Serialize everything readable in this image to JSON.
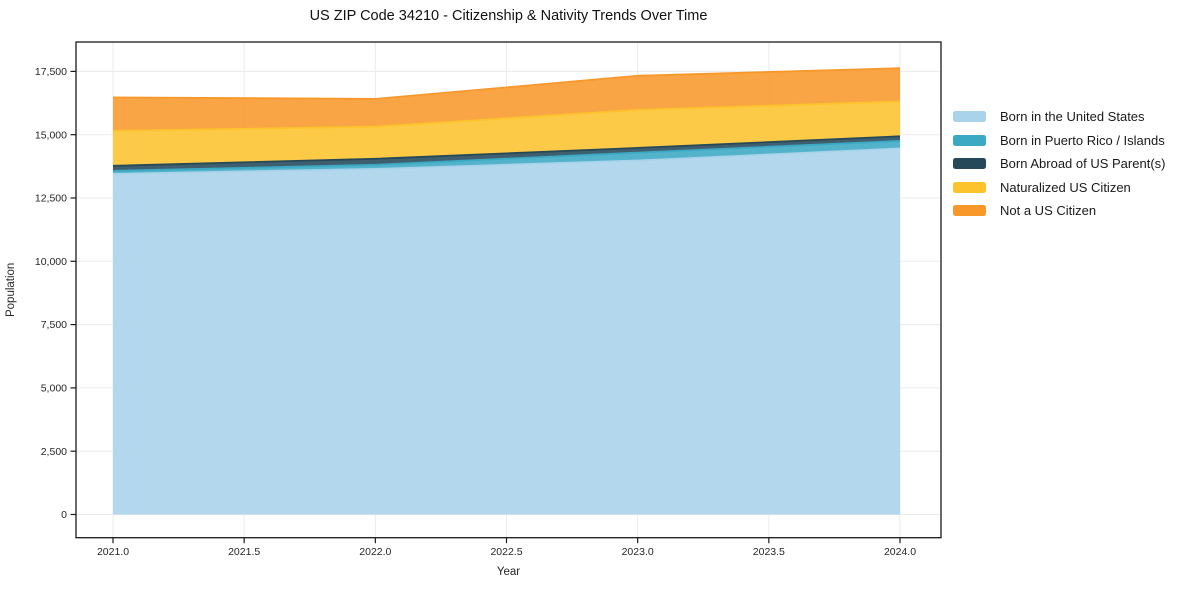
{
  "title": "US ZIP Code 34210 - Citizenship & Nativity Trends Over Time",
  "axes": {
    "x_label": "Year",
    "y_label": "Population",
    "x_ticks": [
      {
        "value": 2021.0,
        "label": "2021.0"
      },
      {
        "value": 2021.5,
        "label": "2021.5"
      },
      {
        "value": 2022.0,
        "label": "2022.0"
      },
      {
        "value": 2022.5,
        "label": "2022.5"
      },
      {
        "value": 2023.0,
        "label": "2023.0"
      },
      {
        "value": 2023.5,
        "label": "2023.5"
      },
      {
        "value": 2024.0,
        "label": "2024.0"
      }
    ],
    "y_ticks": [
      {
        "value": 0,
        "label": "0"
      },
      {
        "value": 2500,
        "label": "2,500"
      },
      {
        "value": 5000,
        "label": "5,000"
      },
      {
        "value": 7500,
        "label": "7,500"
      },
      {
        "value": 10000,
        "label": "10,000"
      },
      {
        "value": 12500,
        "label": "12,500"
      },
      {
        "value": 15000,
        "label": "15,000"
      },
      {
        "value": 17500,
        "label": "17,500"
      }
    ]
  },
  "colors": {
    "frame": "#1a1a1a",
    "gridline": "#ebebeb",
    "tick_text": "#262626",
    "title_text": "#111111"
  },
  "chart_data": {
    "type": "area",
    "stacked": true,
    "title": "US ZIP Code 34210 - Citizenship & Nativity Trends Over Time",
    "xlabel": "Year",
    "ylabel": "Population",
    "x": [
      2021,
      2022,
      2023,
      2024
    ],
    "series": [
      {
        "name": "Born in the United States",
        "color": "#a8d3ea",
        "values": [
          13450,
          13650,
          13980,
          14460
        ]
      },
      {
        "name": "Born in Puerto Rico / Islands",
        "color": "#3ba9c4",
        "values": [
          120,
          160,
          315,
          295
        ]
      },
      {
        "name": "Born Abroad of US Parent(s)",
        "color": "#26495a",
        "values": [
          200,
          240,
          185,
          180
        ]
      },
      {
        "name": "Naturalized US Citizen",
        "color": "#fdc32d",
        "values": [
          1380,
          1265,
          1500,
          1375
        ]
      },
      {
        "name": "Not a US Citizen",
        "color": "#f8982b",
        "values": [
          1325,
          1100,
          1345,
          1315
        ]
      }
    ],
    "stack_totals": [
      16475,
      16415,
      17325,
      17625
    ],
    "xlim": [
      2020.86,
      2024.16
    ],
    "ylim": [
      0,
      18660
    ],
    "grid": true,
    "legend_position": "right outside",
    "fill_opacity": 0.88
  }
}
